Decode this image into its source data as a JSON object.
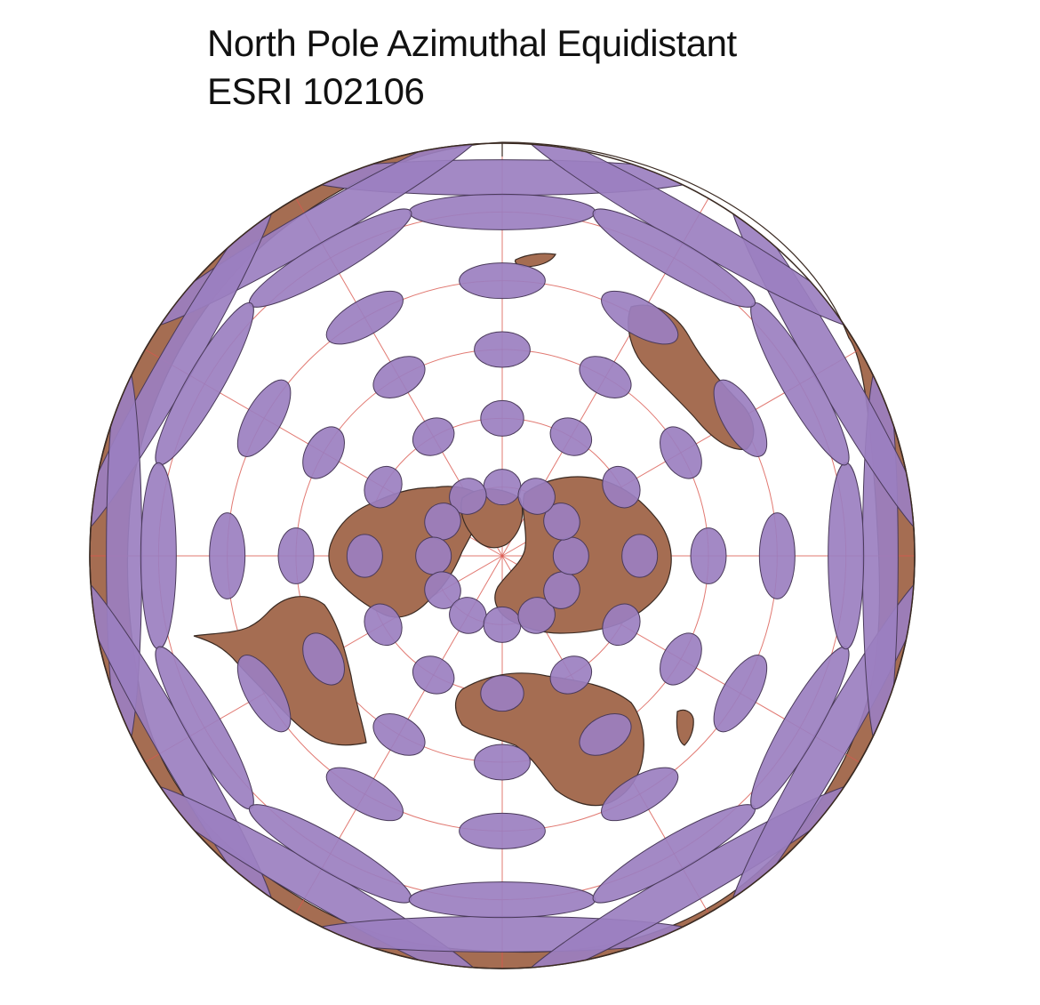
{
  "title": {
    "line1": "North Pole Azimuthal Equidistant",
    "line2": "ESRI 102106"
  },
  "map": {
    "projection": "North Pole Azimuthal Equidistant",
    "center": "North Pole",
    "extent": "whole globe",
    "graticule_spacing_deg": 30,
    "tissot_indicatrix": {
      "shown": true,
      "latitudes_deg": [
        -75,
        -60,
        -30,
        0,
        30,
        60
      ],
      "longitudes_deg": [
        -180,
        -150,
        -120,
        -90,
        -60,
        -30,
        0,
        30,
        60,
        90,
        120,
        150
      ]
    },
    "colors": {
      "land": "#a56d52",
      "land_outline": "#3a2a22",
      "ocean": "#ffffff",
      "graticule": "#d9574f",
      "indicatrix_fill": "#9b7fc0",
      "indicatrix_outline": "#4a3a5a"
    }
  }
}
